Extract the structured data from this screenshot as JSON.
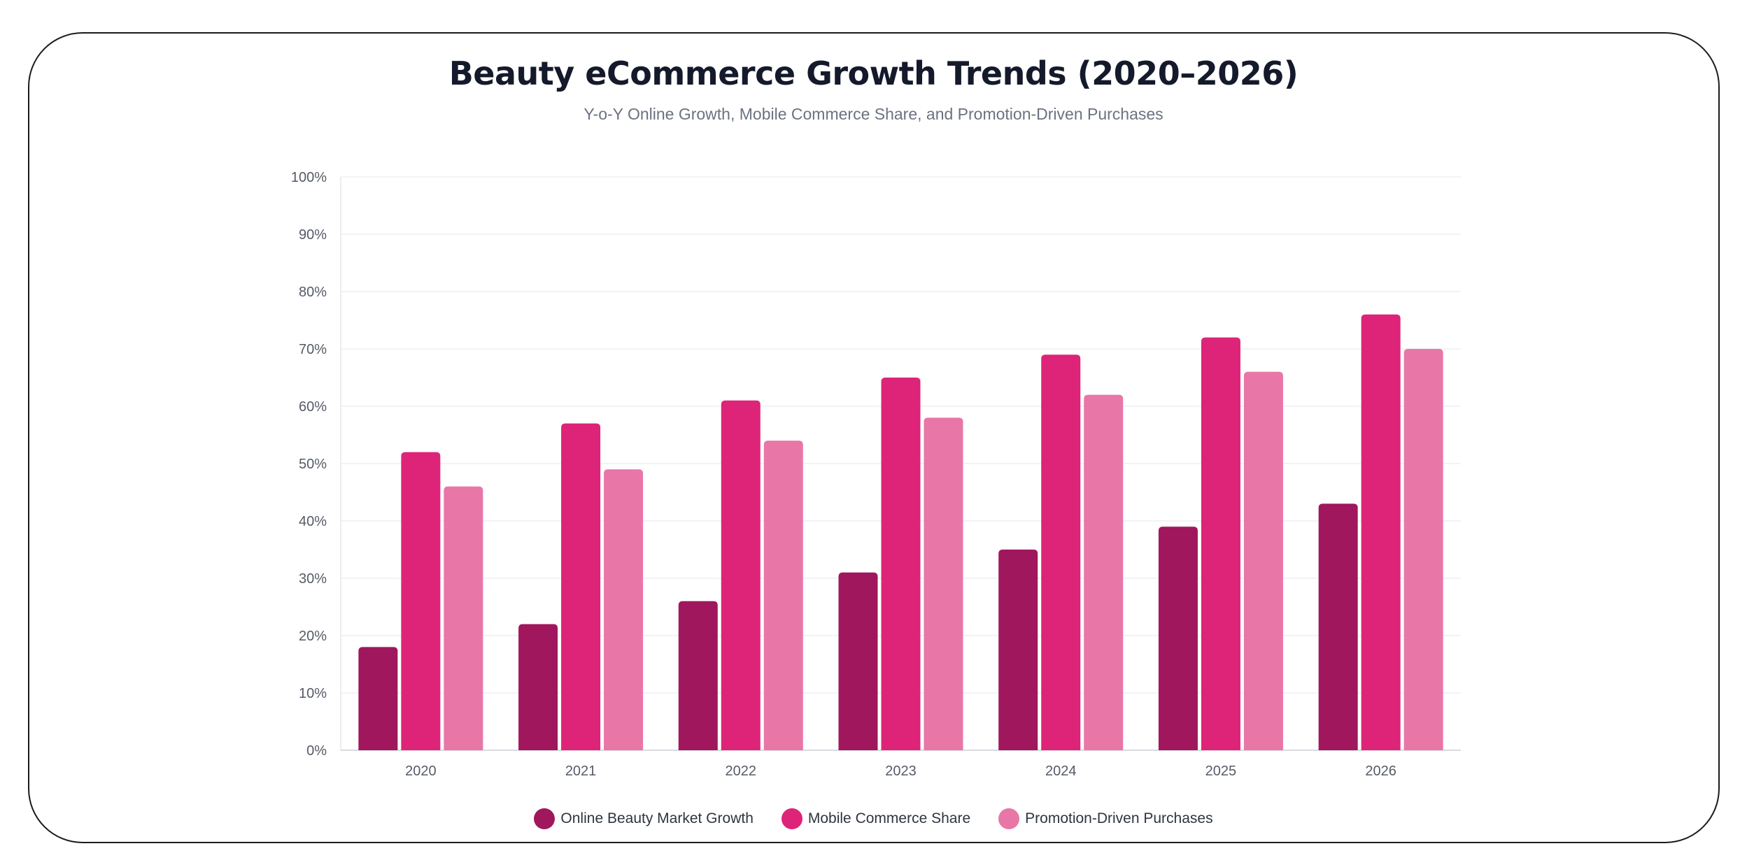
{
  "chart_data": {
    "type": "bar",
    "title": "Beauty eCommerce Growth Trends (2020–2026)",
    "subtitle": "Y-o-Y Online Growth, Mobile Commerce Share, and Promotion-Driven Purchases",
    "categories": [
      "2020",
      "2021",
      "2022",
      "2023",
      "2024",
      "2025",
      "2026"
    ],
    "series": [
      {
        "name": "Online Beauty Market Growth",
        "color": "#a0175e",
        "values": [
          18,
          22,
          26,
          31,
          35,
          39,
          43
        ]
      },
      {
        "name": "Mobile Commerce Share",
        "color": "#dd2478",
        "values": [
          52,
          57,
          61,
          65,
          69,
          72,
          76
        ]
      },
      {
        "name": "Promotion-Driven Purchases",
        "color": "#e877a8",
        "values": [
          46,
          49,
          54,
          58,
          62,
          66,
          70
        ]
      }
    ],
    "y_ticks": [
      "0%",
      "10%",
      "20%",
      "30%",
      "40%",
      "50%",
      "60%",
      "70%",
      "80%",
      "90%",
      "100%"
    ],
    "ylim": [
      0,
      100
    ],
    "grid": true,
    "legend_position": "bottom-center"
  }
}
